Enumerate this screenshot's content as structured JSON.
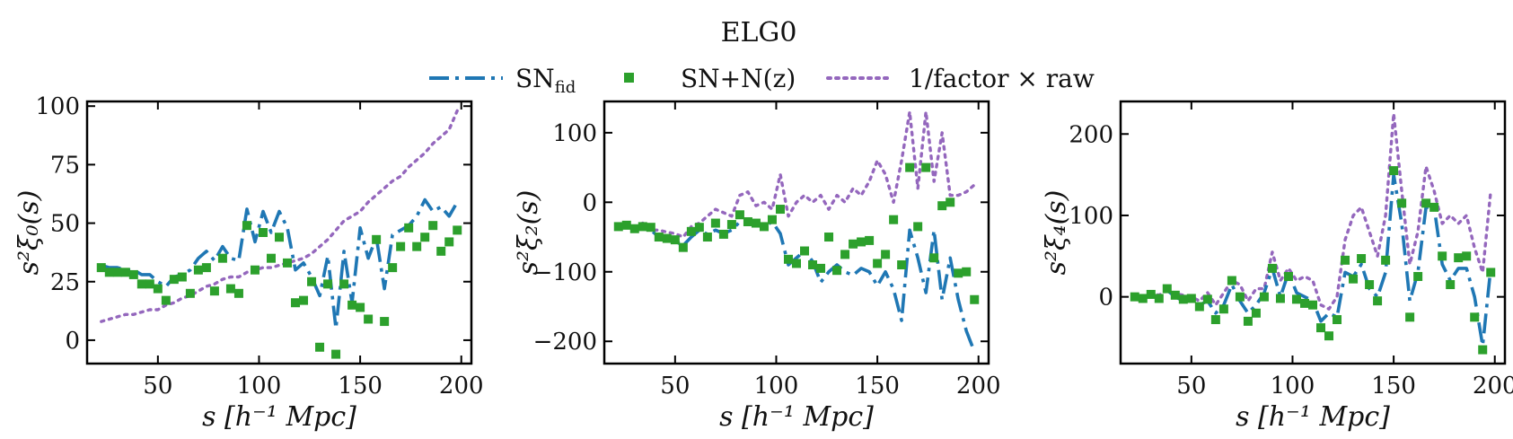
{
  "figure": {
    "title": "ELG0",
    "legend": [
      {
        "key": "sn_fid",
        "base": "SN",
        "sub": "fid",
        "style": "dashdot",
        "color": "#1f77b4"
      },
      {
        "key": "sn_nz",
        "label": "SN+N(z)",
        "style": "square-markers",
        "color": "#2ca02c"
      },
      {
        "key": "raw",
        "label": "1/factor × raw",
        "style": "dotted",
        "color": "#9467bd"
      }
    ]
  },
  "chart_data": [
    {
      "type": "line",
      "panel": "monopole",
      "ylabel": "s²ξ₀(s)",
      "xlabel": "s [h⁻¹ Mpc]",
      "xlim": [
        15,
        205
      ],
      "ylim": [
        -10,
        102
      ],
      "xticks": [
        50,
        100,
        150,
        200
      ],
      "yticks": [
        0,
        25,
        50,
        75,
        100
      ],
      "x": [
        22,
        26,
        30,
        34,
        38,
        42,
        46,
        50,
        54,
        58,
        62,
        66,
        70,
        74,
        78,
        82,
        86,
        90,
        94,
        98,
        102,
        106,
        110,
        114,
        118,
        122,
        126,
        130,
        134,
        138,
        142,
        146,
        150,
        154,
        158,
        162,
        166,
        170,
        174,
        178,
        182,
        186,
        190,
        194,
        198
      ],
      "series": [
        {
          "name": "SN_fid",
          "values": [
            32,
            31,
            31,
            30,
            30,
            28,
            28,
            25,
            23,
            27,
            28,
            30,
            35,
            38,
            34,
            40,
            35,
            34,
            56,
            42,
            55,
            46,
            55,
            48,
            30,
            33,
            27,
            19,
            36,
            5,
            38,
            16,
            48,
            35,
            44,
            22,
            45,
            47,
            49,
            53,
            60,
            55,
            57,
            53,
            59
          ]
        },
        {
          "name": "SN+N(z)",
          "values": [
            31,
            29,
            29,
            29,
            28,
            24,
            24,
            22,
            17,
            26,
            27,
            20,
            30,
            31,
            21,
            35,
            22,
            20,
            49,
            30,
            46,
            35,
            44,
            33,
            16,
            17,
            25,
            -3,
            24,
            -6,
            24,
            15,
            14,
            9,
            43,
            8,
            31,
            40,
            48,
            40,
            44,
            49,
            38,
            42,
            47
          ]
        },
        {
          "name": "1/factor x raw",
          "values": [
            8,
            9,
            10,
            11,
            11,
            12,
            13,
            13,
            15,
            16,
            18,
            19,
            21,
            23,
            24,
            26,
            27,
            27,
            29,
            30,
            31,
            31,
            32,
            33,
            34,
            35,
            37,
            40,
            43,
            47,
            51,
            53,
            55,
            59,
            62,
            65,
            68,
            70,
            74,
            77,
            80,
            84,
            87,
            90,
            98
          ]
        }
      ]
    },
    {
      "type": "line",
      "panel": "quadrupole",
      "ylabel": "s²ξ₂(s)",
      "xlabel": "s [h⁻¹ Mpc]",
      "xlim": [
        15,
        205
      ],
      "ylim": [
        -232,
        145
      ],
      "xticks": [
        50,
        100,
        150,
        200
      ],
      "yticks": [
        -200,
        -100,
        0,
        100
      ],
      "x": [
        22,
        26,
        30,
        34,
        38,
        42,
        46,
        50,
        54,
        58,
        62,
        66,
        70,
        74,
        78,
        82,
        86,
        90,
        94,
        98,
        102,
        106,
        110,
        114,
        118,
        122,
        126,
        130,
        134,
        138,
        142,
        146,
        150,
        154,
        158,
        162,
        166,
        170,
        174,
        178,
        182,
        186,
        190,
        194,
        198
      ],
      "series": [
        {
          "name": "SN_fid",
          "values": [
            -35,
            -35,
            -38,
            -36,
            -40,
            -50,
            -52,
            -56,
            -62,
            -50,
            -40,
            -46,
            -40,
            -45,
            -40,
            -28,
            -30,
            -32,
            -35,
            -28,
            -45,
            -90,
            -80,
            -70,
            -85,
            -115,
            -100,
            -90,
            -100,
            -105,
            -95,
            -100,
            -120,
            -100,
            -125,
            -170,
            -40,
            -80,
            -130,
            -40,
            -140,
            -80,
            -140,
            -185,
            -215
          ]
        },
        {
          "name": "SN+N(z)",
          "values": [
            -35,
            -33,
            -38,
            -35,
            -36,
            -50,
            -52,
            -54,
            -65,
            -42,
            -36,
            -50,
            -30,
            -46,
            -32,
            -18,
            -28,
            -30,
            -35,
            -25,
            -10,
            -82,
            -88,
            -70,
            -90,
            -95,
            -50,
            -98,
            -75,
            -60,
            -57,
            -55,
            -88,
            -75,
            -25,
            -90,
            50,
            -35,
            50,
            -80,
            -5,
            0,
            -102,
            -100,
            -140
          ]
        },
        {
          "name": "1/factor x raw",
          "values": [
            -35,
            -33,
            -37,
            -30,
            -40,
            -40,
            -43,
            -45,
            -50,
            -35,
            -30,
            -20,
            -10,
            -15,
            -20,
            10,
            15,
            -5,
            0,
            -10,
            40,
            -20,
            0,
            10,
            0,
            10,
            -10,
            10,
            0,
            20,
            10,
            30,
            60,
            40,
            0,
            60,
            130,
            20,
            130,
            30,
            100,
            10,
            10,
            15,
            25
          ]
        }
      ]
    },
    {
      "type": "line",
      "panel": "hexadecapole",
      "ylabel": "s²ξ₄(s)",
      "xlabel": "s [h⁻¹ Mpc]",
      "xlim": [
        15,
        205
      ],
      "ylim": [
        -82,
        240
      ],
      "xticks": [
        50,
        100,
        150,
        200
      ],
      "yticks": [
        0,
        100,
        200
      ],
      "x": [
        22,
        26,
        30,
        34,
        38,
        42,
        46,
        50,
        54,
        58,
        62,
        66,
        70,
        74,
        78,
        82,
        86,
        90,
        94,
        98,
        102,
        106,
        110,
        114,
        118,
        122,
        126,
        130,
        134,
        138,
        142,
        146,
        150,
        154,
        158,
        162,
        166,
        170,
        174,
        178,
        182,
        186,
        190,
        194,
        198
      ],
      "series": [
        {
          "name": "SN_fid",
          "values": [
            0,
            -2,
            5,
            0,
            8,
            0,
            -5,
            -3,
            -10,
            -5,
            -20,
            -10,
            15,
            -5,
            -20,
            -10,
            5,
            35,
            0,
            30,
            5,
            0,
            -5,
            -30,
            -20,
            -25,
            30,
            25,
            40,
            10,
            0,
            30,
            150,
            90,
            -5,
            30,
            110,
            110,
            40,
            20,
            35,
            35,
            0,
            -60,
            35
          ]
        },
        {
          "name": "SN+N(z)",
          "values": [
            0,
            -2,
            3,
            -2,
            10,
            2,
            -3,
            -2,
            -12,
            -3,
            -28,
            -15,
            20,
            0,
            -30,
            -20,
            0,
            35,
            -2,
            25,
            -3,
            -8,
            -10,
            -38,
            -48,
            -28,
            45,
            22,
            47,
            15,
            -5,
            45,
            155,
            115,
            -25,
            25,
            115,
            110,
            50,
            15,
            48,
            50,
            -25,
            -65,
            30
          ]
        },
        {
          "name": "1/factor x raw",
          "values": [
            0,
            0,
            5,
            2,
            8,
            4,
            2,
            0,
            -5,
            5,
            -10,
            5,
            20,
            15,
            -5,
            10,
            10,
            55,
            20,
            35,
            20,
            25,
            20,
            -10,
            -15,
            0,
            70,
            100,
            110,
            80,
            50,
            100,
            225,
            130,
            40,
            80,
            160,
            130,
            90,
            100,
            90,
            100,
            60,
            30,
            130
          ]
        }
      ]
    }
  ]
}
